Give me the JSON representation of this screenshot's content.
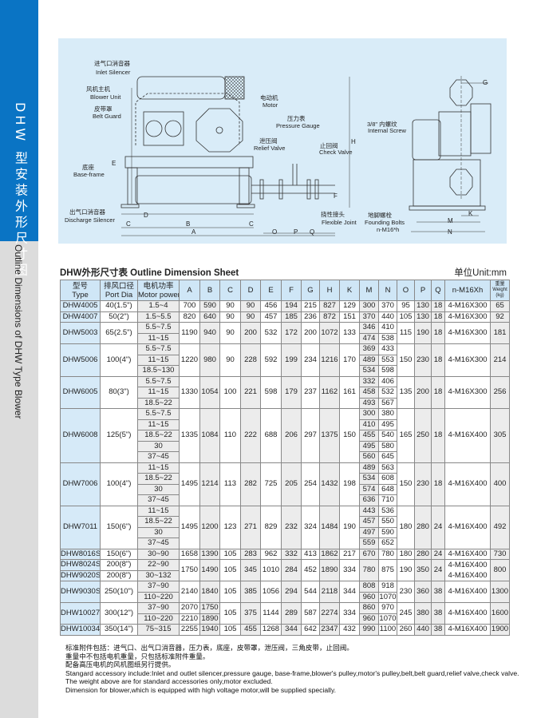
{
  "sidebar": {
    "title_cn": "DHW 型安装外形尺寸图",
    "title_en": "Outline Dimensions of DHW Type Blower",
    "accent": "#0a74c4"
  },
  "diagram": {
    "labels": {
      "inlet_cn": "进气口消音器",
      "inlet_en": "Inlet Silencer",
      "blower_cn": "风机主机",
      "blower_en": "Blower Unit",
      "belt_cn": "皮带罩",
      "belt_en": "Belt Guard",
      "motor_cn": "电动机",
      "motor_en": "Motor",
      "gauge_cn": "压力表",
      "gauge_en": "Pressure Gauge",
      "relief_cn": "泄压阀",
      "relief_en": "Relief Valve",
      "check_cn": "止回阀",
      "check_en": "Check Valve",
      "base_cn": "底座",
      "base_en": "Base-frame",
      "discharge_cn": "出气口消音器",
      "discharge_en": "Discharge Silencer",
      "flex_cn": "挠性接头",
      "flex_en": "Flexible Joint",
      "screw_cn": "3/8\" 内螺纹",
      "screw_en": "Internal Screw",
      "bolts_cn": "地脚螺栓",
      "bolts_en": "Founding Bolts",
      "bolts_spec": "n-M16*h"
    },
    "dims": {
      "A": "A",
      "B": "B",
      "C": "C",
      "D": "D",
      "E": "E",
      "F": "F",
      "G": "G",
      "H": "H",
      "K": "K",
      "M": "M",
      "N": "N",
      "O": "O",
      "P": "P",
      "Q": "Q"
    }
  },
  "sheet": {
    "title": "DHW外形尺寸表 Outline Dimension Sheet",
    "unit": "单位Unit:mm"
  },
  "table": {
    "headers": [
      [
        "型号",
        "Type"
      ],
      [
        "排风口径",
        "Port Dia"
      ],
      [
        "电机功率",
        "Motor power"
      ],
      [
        "A"
      ],
      [
        "B"
      ],
      [
        "C"
      ],
      [
        "D"
      ],
      [
        "E"
      ],
      [
        "F"
      ],
      [
        "G"
      ],
      [
        "H"
      ],
      [
        "K"
      ],
      [
        "M"
      ],
      [
        "N"
      ],
      [
        "O"
      ],
      [
        "P"
      ],
      [
        "Q"
      ],
      [
        "n-M16Xh"
      ],
      [
        "重量",
        "Weight",
        "(kg)"
      ]
    ],
    "rows": [
      [
        "DHW4005",
        "40(1.5\")",
        "1.5~4",
        "700",
        "590",
        "90",
        "90",
        "456",
        "194",
        "215",
        "827",
        "129",
        "300",
        "370",
        "95",
        "130",
        "18",
        "4-M16X300",
        "65"
      ],
      [
        "DHW4007",
        "50(2\")",
        "1.5~5.5",
        "820",
        "640",
        "90",
        "90",
        "457",
        "185",
        "236",
        "872",
        "151",
        "370",
        "440",
        "105",
        "130",
        "18",
        "4-M16X300",
        "92"
      ],
      [
        {
          "t": "DHW5003",
          "rs": 2
        },
        {
          "t": "65(2.5\")",
          "rs": 2
        },
        "5.5~7.5",
        {
          "t": "1190",
          "rs": 2
        },
        {
          "t": "940",
          "rs": 2
        },
        {
          "t": "90",
          "rs": 2
        },
        {
          "t": "200",
          "rs": 2
        },
        {
          "t": "532",
          "rs": 2
        },
        {
          "t": "172",
          "rs": 2
        },
        {
          "t": "200",
          "rs": 2
        },
        {
          "t": "1072",
          "rs": 2
        },
        {
          "t": "133",
          "rs": 2
        },
        "346",
        "410",
        {
          "t": "115",
          "rs": 2
        },
        {
          "t": "190",
          "rs": 2
        },
        {
          "t": "18",
          "rs": 2
        },
        {
          "t": "4-M16X300",
          "rs": 2
        },
        {
          "t": "181",
          "rs": 2
        }
      ],
      [
        "11~15",
        "474",
        "538"
      ],
      [
        {
          "t": "DHW5006",
          "rs": 3
        },
        {
          "t": "100(4\")",
          "rs": 3
        },
        "5.5~7.5",
        {
          "t": "1220",
          "rs": 3
        },
        {
          "t": "980",
          "rs": 3
        },
        {
          "t": "90",
          "rs": 3
        },
        {
          "t": "228",
          "rs": 3
        },
        {
          "t": "592",
          "rs": 3
        },
        {
          "t": "199",
          "rs": 3
        },
        {
          "t": "234",
          "rs": 3
        },
        {
          "t": "1216",
          "rs": 3
        },
        {
          "t": "170",
          "rs": 3
        },
        "369",
        "433",
        {
          "t": "150",
          "rs": 3
        },
        {
          "t": "230",
          "rs": 3
        },
        {
          "t": "18",
          "rs": 3
        },
        {
          "t": "4-M16X300",
          "rs": 3
        },
        {
          "t": "214",
          "rs": 3
        }
      ],
      [
        "11~15",
        "489",
        "553"
      ],
      [
        "18.5~130",
        "534",
        "598"
      ],
      [
        {
          "t": "DHW6005",
          "rs": 3
        },
        {
          "t": "80(3\")",
          "rs": 3
        },
        "5.5~7.5",
        {
          "t": "1330",
          "rs": 3
        },
        {
          "t": "1054",
          "rs": 3
        },
        {
          "t": "100",
          "rs": 3
        },
        {
          "t": "221",
          "rs": 3
        },
        {
          "t": "598",
          "rs": 3
        },
        {
          "t": "179",
          "rs": 3
        },
        {
          "t": "237",
          "rs": 3
        },
        {
          "t": "1162",
          "rs": 3
        },
        {
          "t": "161",
          "rs": 3
        },
        "332",
        "406",
        {
          "t": "135",
          "rs": 3
        },
        {
          "t": "200",
          "rs": 3
        },
        {
          "t": "18",
          "rs": 3
        },
        {
          "t": "4-M16X300",
          "rs": 3
        },
        {
          "t": "256",
          "rs": 3
        }
      ],
      [
        "11~15",
        "458",
        "532"
      ],
      [
        "18.5~22",
        "493",
        "567"
      ],
      [
        {
          "t": "DHW6008",
          "rs": 5
        },
        {
          "t": "125(5\")",
          "rs": 5
        },
        "5.5~7.5",
        {
          "t": "1335",
          "rs": 5
        },
        {
          "t": "1084",
          "rs": 5
        },
        {
          "t": "110",
          "rs": 5
        },
        {
          "t": "222",
          "rs": 5
        },
        {
          "t": "688",
          "rs": 5
        },
        {
          "t": "206",
          "rs": 5
        },
        {
          "t": "297",
          "rs": 5
        },
        {
          "t": "1375",
          "rs": 5
        },
        {
          "t": "150",
          "rs": 5
        },
        "300",
        "380",
        {
          "t": "165",
          "rs": 5
        },
        {
          "t": "250",
          "rs": 5
        },
        {
          "t": "18",
          "rs": 5
        },
        {
          "t": "4-M16X400",
          "rs": 5
        },
        {
          "t": "305",
          "rs": 5
        }
      ],
      [
        "11~15",
        "410",
        "495"
      ],
      [
        "18.5~22",
        "455",
        "540"
      ],
      [
        "30",
        "495",
        "580"
      ],
      [
        "37~45",
        "560",
        "645"
      ],
      [
        {
          "t": "DHW7006",
          "rs": 4
        },
        {
          "t": "100(4\")",
          "rs": 4
        },
        "11~15",
        {
          "t": "1495",
          "rs": 4
        },
        {
          "t": "1214",
          "rs": 4
        },
        {
          "t": "113",
          "rs": 4
        },
        {
          "t": "282",
          "rs": 4
        },
        {
          "t": "725",
          "rs": 4
        },
        {
          "t": "205",
          "rs": 4
        },
        {
          "t": "254",
          "rs": 4
        },
        {
          "t": "1432",
          "rs": 4
        },
        {
          "t": "198",
          "rs": 4
        },
        "489",
        "563",
        {
          "t": "150",
          "rs": 4
        },
        {
          "t": "230",
          "rs": 4
        },
        {
          "t": "18",
          "rs": 4
        },
        {
          "t": "4-M16X400",
          "rs": 4
        },
        {
          "t": "400",
          "rs": 4
        }
      ],
      [
        "18.5~22",
        "534",
        "608"
      ],
      [
        "30",
        "574",
        "648"
      ],
      [
        "37~45",
        "636",
        "710"
      ],
      [
        {
          "t": "DHW7011",
          "rs": 4
        },
        {
          "t": "150(6\")",
          "rs": 4
        },
        "11~15",
        {
          "t": "1495",
          "rs": 4
        },
        {
          "t": "1200",
          "rs": 4
        },
        {
          "t": "123",
          "rs": 4
        },
        {
          "t": "271",
          "rs": 4
        },
        {
          "t": "829",
          "rs": 4
        },
        {
          "t": "232",
          "rs": 4
        },
        {
          "t": "324",
          "rs": 4
        },
        {
          "t": "1484",
          "rs": 4
        },
        {
          "t": "190",
          "rs": 4
        },
        "443",
        "536",
        {
          "t": "180",
          "rs": 4
        },
        {
          "t": "280",
          "rs": 4
        },
        {
          "t": "24",
          "rs": 4
        },
        {
          "t": "4-M16X400",
          "rs": 4
        },
        {
          "t": "492",
          "rs": 4
        }
      ],
      [
        "18.5~22",
        "457",
        "550"
      ],
      [
        "30",
        "497",
        "590"
      ],
      [
        "37~45",
        "559",
        "652"
      ],
      [
        "DHW8016S",
        "150(6\")",
        "30~90",
        "1658",
        "1390",
        "105",
        "283",
        "962",
        "332",
        "413",
        "1862",
        "217",
        "670",
        "780",
        "180",
        "280",
        "24",
        "4-M16X400",
        "730"
      ],
      [
        "DHW8024S",
        "200(8\")",
        "22~90",
        {
          "t": "1750",
          "rs": 2
        },
        {
          "t": "1490",
          "rs": 2
        },
        {
          "t": "105",
          "rs": 2
        },
        {
          "t": "345",
          "rs": 2
        },
        {
          "t": "1010",
          "rs": 2
        },
        {
          "t": "284",
          "rs": 2
        },
        {
          "t": "452",
          "rs": 2
        },
        {
          "t": "1890",
          "rs": 2
        },
        {
          "t": "334",
          "rs": 2
        },
        {
          "t": "780",
          "rs": 2
        },
        {
          "t": "875",
          "rs": 2
        },
        {
          "t": "190",
          "rs": 2
        },
        {
          "t": "350",
          "rs": 2
        },
        {
          "t": "24",
          "rs": 2
        },
        {
          "t": "4-M16X400\n4-M16X400",
          "rs": 2
        },
        {
          "t": "800",
          "rs": 2
        }
      ],
      [
        "DHW9020S",
        "200(8\")",
        "30~132"
      ],
      [
        {
          "t": "DHW9030S",
          "rs": 2
        },
        {
          "t": "250(10\")",
          "rs": 2
        },
        "37~90",
        {
          "t": "2140",
          "rs": 2
        },
        {
          "t": "1840",
          "rs": 2
        },
        {
          "t": "105",
          "rs": 2
        },
        {
          "t": "385",
          "rs": 2
        },
        {
          "t": "1056",
          "rs": 2
        },
        {
          "t": "294",
          "rs": 2
        },
        {
          "t": "544",
          "rs": 2
        },
        {
          "t": "2118",
          "rs": 2
        },
        {
          "t": "344",
          "rs": 2
        },
        "808",
        "918",
        {
          "t": "230",
          "rs": 2
        },
        {
          "t": "360",
          "rs": 2
        },
        {
          "t": "38",
          "rs": 2
        },
        {
          "t": "4-M16X400",
          "rs": 2
        },
        {
          "t": "1300",
          "rs": 2
        }
      ],
      [
        "110~220",
        "960",
        "1070"
      ],
      [
        {
          "t": "DHW10027S",
          "rs": 2
        },
        {
          "t": "300(12\")",
          "rs": 2
        },
        "37~90",
        "2070",
        "1750",
        {
          "t": "105",
          "rs": 2
        },
        {
          "t": "375",
          "rs": 2
        },
        {
          "t": "1144",
          "rs": 2
        },
        {
          "t": "289",
          "rs": 2
        },
        {
          "t": "587",
          "rs": 2
        },
        {
          "t": "2274",
          "rs": 2
        },
        {
          "t": "334",
          "rs": 2
        },
        "860",
        "970",
        {
          "t": "245",
          "rs": 2
        },
        {
          "t": "380",
          "rs": 2
        },
        {
          "t": "38",
          "rs": 2
        },
        {
          "t": "4-M16X400",
          "rs": 2
        },
        {
          "t": "1600",
          "rs": 2
        }
      ],
      [
        "110~220",
        "2210",
        "1890",
        "960",
        "1070"
      ],
      [
        "DHW10034S",
        "350(14\")",
        "75~315",
        "2255",
        "1940",
        "105",
        "455",
        "1268",
        "344",
        "642",
        "2347",
        "432",
        "990",
        "1100",
        "260",
        "440",
        "38",
        "4-M16X400",
        "1900"
      ]
    ]
  },
  "notes": [
    "标准附件包括：进气口、出气口消音器，压力表，底座，皮带罩，泄压阀，三角皮带，止回阀。",
    "重量中不包括电机重量，只包括标准附件重量。",
    "配备高压电机的风机图纸另行提供。",
    "Stangard accessory include:Inlet and outlet silencer,pressure gauge, base-frame,blower's pulley,motor's pulley,belt,belt guard,relief valve,check valve.",
    "The weight above are for standard accessories only,motor excluded.",
    "Dimension for blower,which is equipped with high voltage motor,will be supplied specially."
  ]
}
